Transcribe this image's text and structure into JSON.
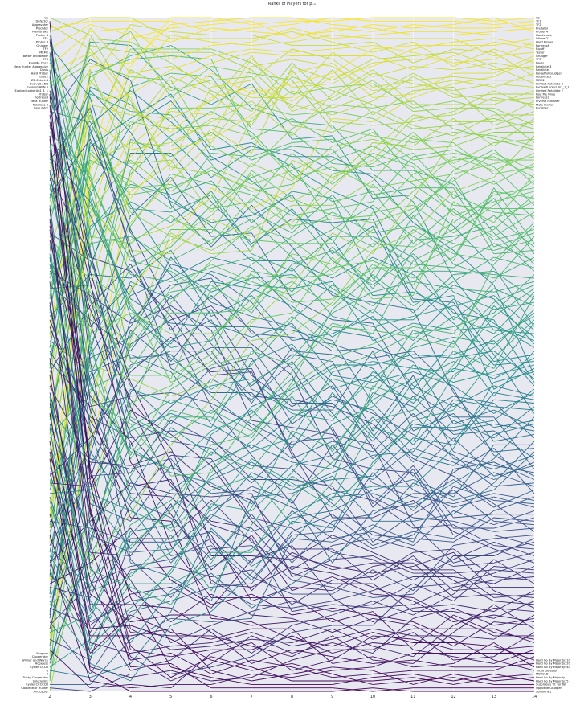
{
  "chart_data": {
    "type": "line",
    "title": "Ranks of Players for p₋₁",
    "x": [
      2,
      3,
      4,
      5,
      6,
      7,
      8,
      9,
      10,
      11,
      12,
      13,
      14
    ],
    "y_inverted": true,
    "y_range": [
      1,
      195
    ],
    "grid": true,
    "background_color": "#e8e8f1",
    "colormap": "viridis",
    "left_labels_top": [
      "CS",
      "Defector",
      "Aggravater",
      "Predator",
      "Handshake",
      "Prober 4",
      "TF1",
      "Prober 3",
      "Grudger",
      "TF2",
      "MEM2",
      "Better and Better",
      "TF3",
      "Fool Me Once",
      "Meta Hunter Aggressive",
      "Davis",
      "Hard Prober",
      "Tullock",
      "ZD-Extort-4",
      "Evolved ANN",
      "Evolved ANN 5",
      "EvolvedLookerUp1_1_1",
      "Prober",
      "Fortress4",
      "Meta Hunter",
      "Retaliate 3",
      "Calculator"
    ],
    "left_labels_bottom": [
      "Forgiver",
      "Cooperator",
      "Winner and Worse",
      "Hopeless",
      "Cycler CCCD",
      "α",
      "β",
      "Tricky Cooperator",
      "SolutionB1",
      "Cycler CCCCCD",
      "Cooperator Hunter",
      "AntiCycler"
    ],
    "right_labels_top": [
      "CS",
      "TF1",
      "TF2",
      "Predator",
      "Prober 4",
      "Handshake",
      "Winner21",
      "Hard Prober",
      "Fortress4",
      "Ripoff",
      "Tester",
      "Grudger",
      "TF3",
      "Davis",
      "Retaliate 3",
      "Retaliate",
      "Forgetful Grudger",
      "Retaliate 2",
      "MEM2",
      "Limited Retaliate 3",
      "EvolvedLookerUp1_1_1",
      "Limited Retaliate 2",
      "Fool Me Once",
      "Fortress3",
      "Inverse Punisher",
      "Meta Hunter",
      "Punisher"
    ],
    "right_labels_bottom": [
      "Hard Go By Majority: 10",
      "Hard Go By Majority: 20",
      "Hard Go By Majority: 40",
      "Tricky Defector",
      "MEM2LD",
      "Hard Go By Majority",
      "Hard Go By Majority: 5",
      "Suspicious Tit For Tat",
      "Opposite Grudger",
      "SolutionB1"
    ],
    "num_players": 195,
    "seed": 7
  }
}
